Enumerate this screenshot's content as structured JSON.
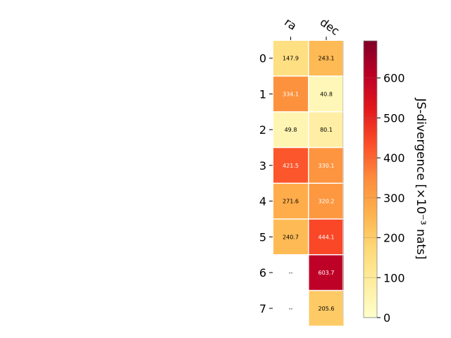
{
  "chart_data": {
    "type": "heatmap",
    "columns": [
      "ra",
      "dec"
    ],
    "rows": [
      "0",
      "1",
      "2",
      "3",
      "4",
      "5",
      "6",
      "7"
    ],
    "values": [
      [
        147.9,
        243.1
      ],
      [
        334.1,
        40.8
      ],
      [
        49.8,
        80.1
      ],
      [
        421.5,
        330.1
      ],
      [
        271.6,
        320.2
      ],
      [
        240.7,
        444.1
      ],
      [
        null,
        603.7
      ],
      [
        null,
        205.6
      ]
    ],
    "cell_labels": [
      [
        "147.9",
        "243.1"
      ],
      [
        "334.1",
        "40.8"
      ],
      [
        "49.8",
        "80.1"
      ],
      [
        "421.5",
        "330.1"
      ],
      [
        "271.6",
        "320.2"
      ],
      [
        "240.7",
        "444.1"
      ],
      [
        "--",
        "603.7"
      ],
      [
        "--",
        "205.6"
      ]
    ],
    "colorbar": {
      "label": "JS-divergence [×10⁻³ nats]",
      "range": [
        0,
        693
      ],
      "ticks": [
        0,
        100,
        200,
        300,
        400,
        500,
        600
      ],
      "colormap": "YlOrRd"
    }
  }
}
